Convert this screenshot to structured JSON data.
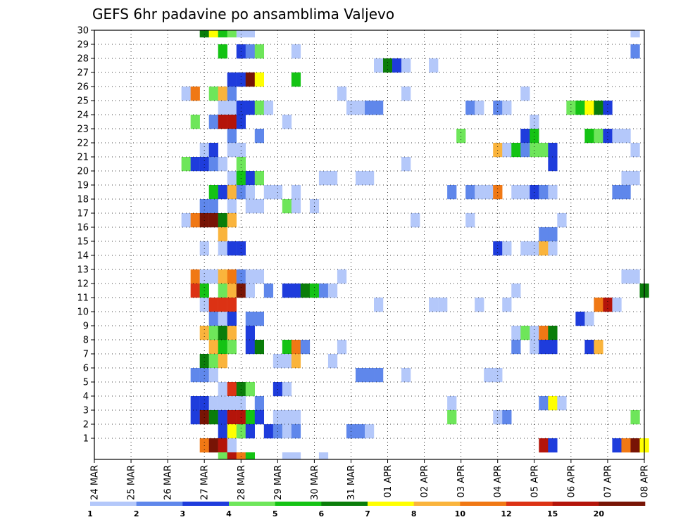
{
  "chart_data": {
    "type": "heatmap",
    "title": "GEFS 6hr padavine po ansamblima Valjevo",
    "xlabel": "",
    "ylabel": "",
    "x_ticks": [
      "24 MAR",
      "25 MAR",
      "26 MAR",
      "27 MAR",
      "28 MAR",
      "29 MAR",
      "30 MAR",
      "31 MAR",
      "01 APR",
      "02 APR",
      "03 APR",
      "04 APR",
      "05 APR",
      "06 APR",
      "07 APR",
      "08 APR"
    ],
    "y_ticks": [
      1,
      2,
      3,
      4,
      5,
      6,
      7,
      8,
      9,
      10,
      11,
      12,
      13,
      14,
      15,
      16,
      17,
      18,
      19,
      20,
      21,
      22,
      23,
      24,
      25,
      26,
      27,
      28,
      29,
      30
    ],
    "x_range_steps": [
      0,
      60
    ],
    "y_range_members": [
      0,
      30
    ],
    "grid": true,
    "legend": {
      "placement": "bottom",
      "thresholds": [
        "1",
        "2",
        "3",
        "4",
        "5",
        "6",
        "7",
        "8",
        "10",
        "12",
        "15",
        "20"
      ],
      "colors": [
        "#b4c8fa",
        "#5f87eb",
        "#1e3cdc",
        "#6ee65a",
        "#14c314",
        "#0a7d0a",
        "#ffff00",
        "#fab43c",
        "#f07814",
        "#dc3214",
        "#b4140a",
        "#781405"
      ]
    },
    "cells": [
      {
        "member": 30,
        "steps": [
          [
            12,
            6
          ],
          [
            13,
            7
          ],
          [
            14,
            5
          ],
          [
            15,
            4
          ],
          [
            16,
            1
          ],
          [
            17,
            1
          ],
          [
            59,
            1
          ]
        ]
      },
      {
        "member": 29,
        "steps": [
          [
            14,
            5
          ],
          [
            16,
            3
          ],
          [
            17,
            2
          ],
          [
            18,
            4
          ],
          [
            22,
            1
          ],
          [
            59,
            2
          ]
        ]
      },
      {
        "member": 28,
        "steps": [
          [
            31,
            1
          ],
          [
            32,
            6
          ],
          [
            33,
            3
          ],
          [
            34,
            1
          ],
          [
            37,
            1
          ]
        ]
      },
      {
        "member": 27,
        "steps": [
          [
            15,
            3
          ],
          [
            16,
            3
          ],
          [
            17,
            12
          ],
          [
            18,
            7
          ],
          [
            22,
            5
          ]
        ]
      },
      {
        "member": 26,
        "steps": [
          [
            10,
            1
          ],
          [
            11,
            9
          ],
          [
            13,
            4
          ],
          [
            14,
            8
          ],
          [
            15,
            2
          ],
          [
            27,
            1
          ],
          [
            34,
            1
          ],
          [
            47,
            1
          ]
        ]
      },
      {
        "member": 25,
        "steps": [
          [
            14,
            1
          ],
          [
            15,
            1
          ],
          [
            16,
            3
          ],
          [
            17,
            3
          ],
          [
            18,
            4
          ],
          [
            19,
            1
          ],
          [
            28,
            1
          ],
          [
            29,
            1
          ],
          [
            30,
            2
          ],
          [
            31,
            2
          ],
          [
            41,
            2
          ],
          [
            42,
            1
          ],
          [
            44,
            2
          ],
          [
            45,
            1
          ],
          [
            52,
            4
          ],
          [
            53,
            5
          ],
          [
            54,
            7
          ],
          [
            55,
            6
          ],
          [
            56,
            3
          ]
        ]
      },
      {
        "member": 24,
        "steps": [
          [
            11,
            4
          ],
          [
            13,
            2
          ],
          [
            14,
            11
          ],
          [
            15,
            11
          ],
          [
            16,
            3
          ],
          [
            21,
            1
          ],
          [
            48,
            1
          ]
        ]
      },
      {
        "member": 23,
        "steps": [
          [
            15,
            2
          ],
          [
            18,
            2
          ],
          [
            40,
            4
          ],
          [
            47,
            3
          ],
          [
            48,
            5
          ],
          [
            54,
            5
          ],
          [
            55,
            4
          ],
          [
            56,
            3
          ],
          [
            57,
            1
          ],
          [
            58,
            1
          ]
        ]
      },
      {
        "member": 22,
        "steps": [
          [
            12,
            1
          ],
          [
            13,
            3
          ],
          [
            15,
            1
          ],
          [
            16,
            1
          ],
          [
            44,
            8
          ],
          [
            45,
            1
          ],
          [
            46,
            5
          ],
          [
            47,
            2
          ],
          [
            48,
            4
          ],
          [
            49,
            4
          ],
          [
            50,
            3
          ],
          [
            59,
            1
          ]
        ]
      },
      {
        "member": 21,
        "steps": [
          [
            10,
            4
          ],
          [
            11,
            3
          ],
          [
            12,
            3
          ],
          [
            13,
            2
          ],
          [
            14,
            1
          ],
          [
            16,
            4
          ],
          [
            34,
            1
          ],
          [
            50,
            3
          ]
        ]
      },
      {
        "member": 20,
        "steps": [
          [
            15,
            1
          ],
          [
            16,
            5
          ],
          [
            17,
            3
          ],
          [
            18,
            4
          ],
          [
            25,
            1
          ],
          [
            26,
            1
          ],
          [
            29,
            1
          ],
          [
            30,
            1
          ],
          [
            58,
            1
          ],
          [
            59,
            1
          ]
        ]
      },
      {
        "member": 19,
        "steps": [
          [
            13,
            5
          ],
          [
            14,
            3
          ],
          [
            15,
            8
          ],
          [
            16,
            2
          ],
          [
            17,
            1
          ],
          [
            19,
            1
          ],
          [
            20,
            1
          ],
          [
            22,
            1
          ],
          [
            39,
            2
          ],
          [
            41,
            2
          ],
          [
            42,
            1
          ],
          [
            43,
            1
          ],
          [
            44,
            9
          ],
          [
            46,
            1
          ],
          [
            47,
            1
          ],
          [
            48,
            3
          ],
          [
            49,
            2
          ],
          [
            50,
            1
          ],
          [
            57,
            2
          ],
          [
            58,
            2
          ]
        ]
      },
      {
        "member": 18,
        "steps": [
          [
            12,
            2
          ],
          [
            13,
            2
          ],
          [
            15,
            1
          ],
          [
            17,
            1
          ],
          [
            18,
            1
          ],
          [
            21,
            4
          ],
          [
            22,
            1
          ],
          [
            24,
            1
          ]
        ]
      },
      {
        "member": 17,
        "steps": [
          [
            10,
            1
          ],
          [
            11,
            9
          ],
          [
            12,
            12
          ],
          [
            13,
            12
          ],
          [
            14,
            6
          ],
          [
            15,
            8
          ],
          [
            35,
            1
          ],
          [
            41,
            1
          ],
          [
            51,
            1
          ]
        ]
      },
      {
        "member": 16,
        "steps": [
          [
            14,
            8
          ],
          [
            49,
            2
          ],
          [
            50,
            2
          ]
        ]
      },
      {
        "member": 15,
        "steps": [
          [
            12,
            1
          ],
          [
            14,
            1
          ],
          [
            15,
            3
          ],
          [
            16,
            3
          ],
          [
            44,
            3
          ],
          [
            45,
            1
          ],
          [
            47,
            1
          ],
          [
            48,
            1
          ],
          [
            49,
            8
          ],
          [
            50,
            1
          ]
        ]
      },
      {
        "member": 13,
        "steps": [
          [
            11,
            9
          ],
          [
            12,
            1
          ],
          [
            13,
            1
          ],
          [
            14,
            8
          ],
          [
            15,
            9
          ],
          [
            16,
            2
          ],
          [
            17,
            1
          ],
          [
            18,
            1
          ],
          [
            27,
            1
          ],
          [
            58,
            1
          ],
          [
            59,
            1
          ]
        ]
      },
      {
        "member": 12,
        "steps": [
          [
            11,
            10
          ],
          [
            12,
            5
          ],
          [
            14,
            4
          ],
          [
            15,
            8
          ],
          [
            16,
            12
          ],
          [
            17,
            1
          ],
          [
            19,
            2
          ],
          [
            21,
            3
          ],
          [
            22,
            3
          ],
          [
            23,
            6
          ],
          [
            24,
            5
          ],
          [
            25,
            2
          ],
          [
            26,
            1
          ],
          [
            46,
            1
          ],
          [
            60,
            6
          ]
        ]
      },
      {
        "member": 11,
        "steps": [
          [
            12,
            1
          ],
          [
            13,
            10
          ],
          [
            14,
            10
          ],
          [
            15,
            10
          ],
          [
            31,
            1
          ],
          [
            37,
            1
          ],
          [
            38,
            1
          ],
          [
            42,
            1
          ],
          [
            45,
            1
          ],
          [
            55,
            9
          ],
          [
            56,
            11
          ],
          [
            57,
            1
          ]
        ]
      },
      {
        "member": 10,
        "steps": [
          [
            13,
            2
          ],
          [
            14,
            1
          ],
          [
            15,
            3
          ],
          [
            17,
            2
          ],
          [
            18,
            2
          ],
          [
            53,
            3
          ],
          [
            54,
            1
          ]
        ]
      },
      {
        "member": 9,
        "steps": [
          [
            12,
            8
          ],
          [
            13,
            4
          ],
          [
            14,
            6
          ],
          [
            15,
            8
          ],
          [
            17,
            3
          ],
          [
            46,
            1
          ],
          [
            47,
            4
          ],
          [
            48,
            1
          ],
          [
            49,
            9
          ],
          [
            50,
            6
          ]
        ]
      },
      {
        "member": 8,
        "steps": [
          [
            13,
            8
          ],
          [
            14,
            5
          ],
          [
            15,
            4
          ],
          [
            17,
            3
          ],
          [
            18,
            6
          ],
          [
            21,
            5
          ],
          [
            22,
            9
          ],
          [
            23,
            2
          ],
          [
            27,
            1
          ],
          [
            46,
            2
          ],
          [
            48,
            1
          ],
          [
            49,
            3
          ],
          [
            50,
            3
          ],
          [
            54,
            3
          ],
          [
            55,
            8
          ]
        ]
      },
      {
        "member": 7,
        "steps": [
          [
            12,
            6
          ],
          [
            13,
            4
          ],
          [
            14,
            8
          ],
          [
            20,
            1
          ],
          [
            21,
            1
          ],
          [
            22,
            8
          ],
          [
            26,
            1
          ]
        ]
      },
      {
        "member": 6,
        "steps": [
          [
            11,
            2
          ],
          [
            12,
            2
          ],
          [
            13,
            1
          ],
          [
            29,
            2
          ],
          [
            30,
            2
          ],
          [
            31,
            2
          ],
          [
            34,
            1
          ],
          [
            43,
            1
          ],
          [
            44,
            1
          ]
        ]
      },
      {
        "member": 5,
        "steps": [
          [
            14,
            1
          ],
          [
            15,
            10
          ],
          [
            16,
            6
          ],
          [
            17,
            4
          ],
          [
            20,
            3
          ],
          [
            21,
            1
          ]
        ]
      },
      {
        "member": 4,
        "steps": [
          [
            11,
            3
          ],
          [
            12,
            3
          ],
          [
            13,
            1
          ],
          [
            14,
            1
          ],
          [
            15,
            1
          ],
          [
            16,
            1
          ],
          [
            18,
            2
          ],
          [
            39,
            1
          ],
          [
            49,
            2
          ],
          [
            50,
            7
          ],
          [
            51,
            1
          ]
        ]
      },
      {
        "member": 3,
        "steps": [
          [
            11,
            3
          ],
          [
            12,
            12
          ],
          [
            13,
            6
          ],
          [
            14,
            3
          ],
          [
            15,
            11
          ],
          [
            16,
            11
          ],
          [
            17,
            5
          ],
          [
            18,
            3
          ],
          [
            20,
            1
          ],
          [
            21,
            1
          ],
          [
            22,
            1
          ],
          [
            39,
            4
          ],
          [
            44,
            1
          ],
          [
            45,
            2
          ],
          [
            59,
            4
          ]
        ]
      },
      {
        "member": 2,
        "steps": [
          [
            14,
            3
          ],
          [
            15,
            7
          ],
          [
            16,
            4
          ],
          [
            17,
            3
          ],
          [
            19,
            3
          ],
          [
            20,
            2
          ],
          [
            21,
            1
          ],
          [
            22,
            2
          ],
          [
            28,
            2
          ],
          [
            29,
            2
          ],
          [
            30,
            1
          ]
        ]
      },
      {
        "member": 1,
        "steps": [
          [
            12,
            9
          ],
          [
            13,
            12
          ],
          [
            14,
            11
          ],
          [
            15,
            1
          ],
          [
            49,
            11
          ],
          [
            50,
            3
          ],
          [
            57,
            3
          ],
          [
            58,
            9
          ],
          [
            59,
            12
          ],
          [
            60,
            7
          ]
        ]
      },
      {
        "member": 0,
        "steps": [
          [
            14,
            4
          ],
          [
            15,
            11
          ],
          [
            16,
            9
          ],
          [
            17,
            5
          ],
          [
            21,
            1
          ],
          [
            22,
            1
          ],
          [
            25,
            1
          ]
        ]
      }
    ]
  }
}
